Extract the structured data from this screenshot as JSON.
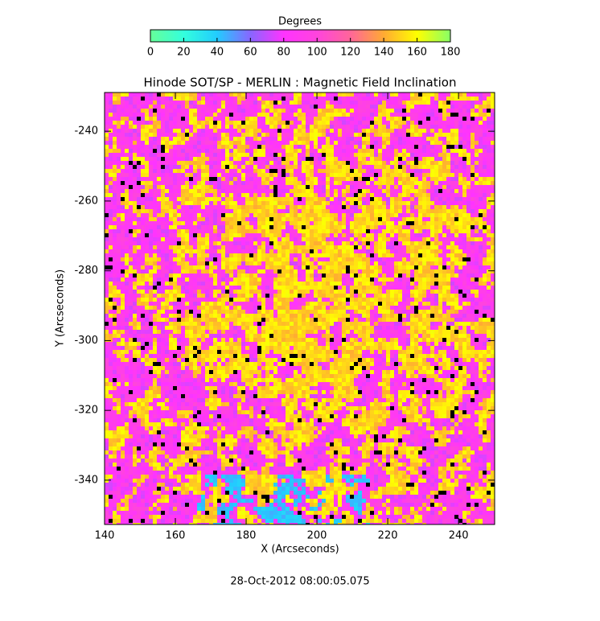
{
  "chart_data": {
    "type": "heatmap",
    "title": "Hinode SOT/SP - MERLIN : Magnetic Field Inclination",
    "xlabel": "X (Arcseconds)",
    "ylabel": "Y (Arcseconds)",
    "xlim": [
      140,
      250.2
    ],
    "ylim": [
      -352.7,
      -228.9
    ],
    "xticks": [
      140,
      160,
      180,
      200,
      220,
      240
    ],
    "yticks": [
      -340,
      -320,
      -300,
      -280,
      -260,
      -240
    ],
    "colorbar": {
      "label": "Degrees",
      "lim": [
        0,
        180
      ],
      "ticks": [
        0,
        20,
        40,
        60,
        80,
        100,
        120,
        140,
        160,
        180
      ],
      "colors": [
        "#66ff99",
        "#33ffdd",
        "#22ccff",
        "#8866ff",
        "#ff33ff",
        "#ff44dd",
        "#ff6699",
        "#ffaa33",
        "#ffff00",
        "#88ff66"
      ]
    },
    "footer": "28-Oct-2012 08:00:05.075"
  }
}
